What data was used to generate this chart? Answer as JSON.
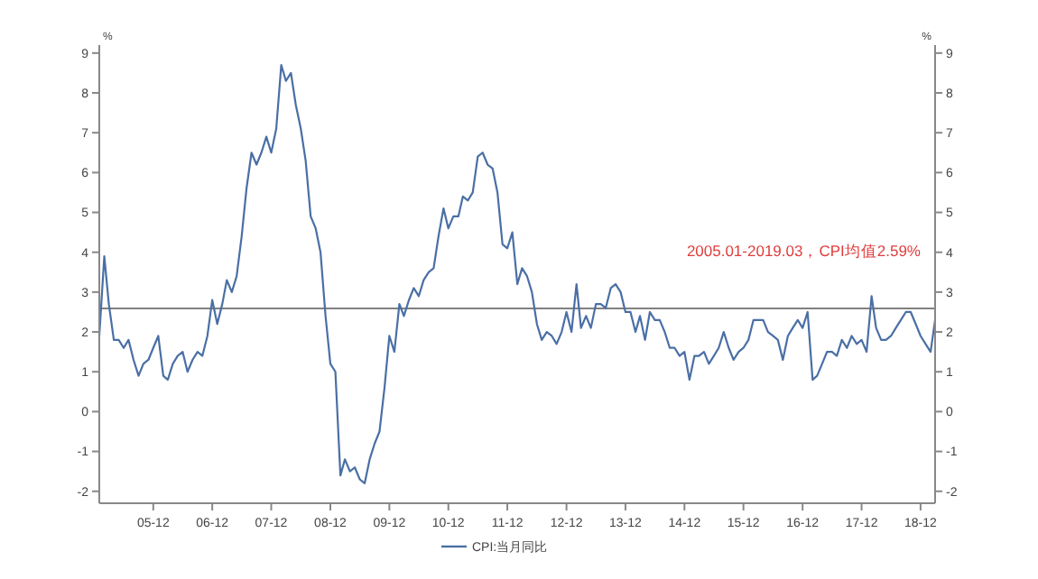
{
  "chart_data": {
    "type": "line",
    "xlabel": null,
    "ylabel": "%",
    "y2label": "%",
    "x": [
      "2005-01",
      "2005-02",
      "2005-03",
      "2005-04",
      "2005-05",
      "2005-06",
      "2005-07",
      "2005-08",
      "2005-09",
      "2005-10",
      "2005-11",
      "2005-12",
      "2006-01",
      "2006-02",
      "2006-03",
      "2006-04",
      "2006-05",
      "2006-06",
      "2006-07",
      "2006-08",
      "2006-09",
      "2006-10",
      "2006-11",
      "2006-12",
      "2007-01",
      "2007-02",
      "2007-03",
      "2007-04",
      "2007-05",
      "2007-06",
      "2007-07",
      "2007-08",
      "2007-09",
      "2007-10",
      "2007-11",
      "2007-12",
      "2008-01",
      "2008-02",
      "2008-03",
      "2008-04",
      "2008-05",
      "2008-06",
      "2008-07",
      "2008-08",
      "2008-09",
      "2008-10",
      "2008-11",
      "2008-12",
      "2009-01",
      "2009-02",
      "2009-03",
      "2009-04",
      "2009-05",
      "2009-06",
      "2009-07",
      "2009-08",
      "2009-09",
      "2009-10",
      "2009-11",
      "2009-12",
      "2010-01",
      "2010-02",
      "2010-03",
      "2010-04",
      "2010-05",
      "2010-06",
      "2010-07",
      "2010-08",
      "2010-09",
      "2010-10",
      "2010-11",
      "2010-12",
      "2011-01",
      "2011-02",
      "2011-03",
      "2011-04",
      "2011-05",
      "2011-06",
      "2011-07",
      "2011-08",
      "2011-09",
      "2011-10",
      "2011-11",
      "2011-12",
      "2012-01",
      "2012-02",
      "2012-03",
      "2012-04",
      "2012-05",
      "2012-06",
      "2012-07",
      "2012-08",
      "2012-09",
      "2012-10",
      "2012-11",
      "2012-12",
      "2013-01",
      "2013-02",
      "2013-03",
      "2013-04",
      "2013-05",
      "2013-06",
      "2013-07",
      "2013-08",
      "2013-09",
      "2013-10",
      "2013-11",
      "2013-12",
      "2014-01",
      "2014-02",
      "2014-03",
      "2014-04",
      "2014-05",
      "2014-06",
      "2014-07",
      "2014-08",
      "2014-09",
      "2014-10",
      "2014-11",
      "2014-12",
      "2015-01",
      "2015-02",
      "2015-03",
      "2015-04",
      "2015-05",
      "2015-06",
      "2015-07",
      "2015-08",
      "2015-09",
      "2015-10",
      "2015-11",
      "2015-12",
      "2016-01",
      "2016-02",
      "2016-03",
      "2016-04",
      "2016-05",
      "2016-06",
      "2016-07",
      "2016-08",
      "2016-09",
      "2016-10",
      "2016-11",
      "2016-12",
      "2017-01",
      "2017-02",
      "2017-03",
      "2017-04",
      "2017-05",
      "2017-06",
      "2017-07",
      "2017-08",
      "2017-09",
      "2017-10",
      "2017-11",
      "2017-12",
      "2018-01",
      "2018-02",
      "2018-03",
      "2018-04",
      "2018-05",
      "2018-06",
      "2018-07",
      "2018-08",
      "2018-09",
      "2018-10",
      "2018-11",
      "2018-12",
      "2019-01",
      "2019-02",
      "2019-03"
    ],
    "series": [
      {
        "name": "CPI:当月同比",
        "color": "#4a6fa5",
        "values": [
          1.9,
          3.9,
          2.7,
          1.8,
          1.8,
          1.6,
          1.8,
          1.3,
          0.9,
          1.2,
          1.3,
          1.6,
          1.9,
          0.9,
          0.8,
          1.2,
          1.4,
          1.5,
          1.0,
          1.3,
          1.5,
          1.4,
          1.9,
          2.8,
          2.2,
          2.7,
          3.3,
          3.0,
          3.4,
          4.4,
          5.6,
          6.5,
          6.2,
          6.5,
          6.9,
          6.5,
          7.1,
          8.7,
          8.3,
          8.5,
          7.7,
          7.1,
          6.3,
          4.9,
          4.6,
          4.0,
          2.4,
          1.2,
          1.0,
          -1.6,
          -1.2,
          -1.5,
          -1.4,
          -1.7,
          -1.8,
          -1.2,
          -0.8,
          -0.5,
          0.6,
          1.9,
          1.5,
          2.7,
          2.4,
          2.8,
          3.1,
          2.9,
          3.3,
          3.5,
          3.6,
          4.4,
          5.1,
          4.6,
          4.9,
          4.9,
          5.4,
          5.3,
          5.5,
          6.4,
          6.5,
          6.2,
          6.1,
          5.5,
          4.2,
          4.1,
          4.5,
          3.2,
          3.6,
          3.4,
          3.0,
          2.2,
          1.8,
          2.0,
          1.9,
          1.7,
          2.0,
          2.5,
          2.0,
          3.2,
          2.1,
          2.4,
          2.1,
          2.7,
          2.7,
          2.6,
          3.1,
          3.2,
          3.0,
          2.5,
          2.5,
          2.0,
          2.4,
          1.8,
          2.5,
          2.3,
          2.3,
          2.0,
          1.6,
          1.6,
          1.4,
          1.5,
          0.8,
          1.4,
          1.4,
          1.5,
          1.2,
          1.4,
          1.6,
          2.0,
          1.6,
          1.3,
          1.5,
          1.6,
          1.8,
          2.3,
          2.3,
          2.3,
          2.0,
          1.9,
          1.8,
          1.3,
          1.9,
          2.1,
          2.3,
          2.1,
          2.5,
          0.8,
          0.9,
          1.2,
          1.5,
          1.5,
          1.4,
          1.8,
          1.6,
          1.9,
          1.7,
          1.8,
          1.5,
          2.9,
          2.1,
          1.8,
          1.8,
          1.9,
          2.1,
          2.3,
          2.5,
          2.5,
          2.2,
          1.9,
          1.7,
          1.5,
          2.3
        ]
      }
    ],
    "xlim": [
      "2005-01",
      "2019-03"
    ],
    "xticks": [
      {
        "value": "2005-12",
        "label": "05-12"
      },
      {
        "value": "2006-12",
        "label": "06-12"
      },
      {
        "value": "2007-12",
        "label": "07-12"
      },
      {
        "value": "2008-12",
        "label": "08-12"
      },
      {
        "value": "2009-12",
        "label": "09-12"
      },
      {
        "value": "2010-12",
        "label": "10-12"
      },
      {
        "value": "2011-12",
        "label": "11-12"
      },
      {
        "value": "2012-12",
        "label": "12-12"
      },
      {
        "value": "2013-12",
        "label": "13-12"
      },
      {
        "value": "2014-12",
        "label": "14-12"
      },
      {
        "value": "2015-12",
        "label": "15-12"
      },
      {
        "value": "2016-12",
        "label": "16-12"
      },
      {
        "value": "2017-12",
        "label": "17-12"
      },
      {
        "value": "2018-12",
        "label": "18-12"
      }
    ],
    "ylim": [
      -2.3,
      9.2
    ],
    "yticks": [
      -2,
      -1,
      0,
      1,
      2,
      3,
      4,
      5,
      6,
      7,
      8,
      9
    ],
    "y2lim": [
      -2.3,
      9.2
    ],
    "y2ticks": [
      -2,
      -1,
      0,
      1,
      2,
      3,
      4,
      5,
      6,
      7,
      8,
      9
    ],
    "ref_lines": [
      {
        "axis": "y",
        "value": 2.59,
        "color": "#808080"
      }
    ],
    "annotations": [
      "2005.01-2019.03，CPI均值2.59%"
    ],
    "legend": "bottom",
    "marker": "none",
    "line_style": "solid"
  }
}
